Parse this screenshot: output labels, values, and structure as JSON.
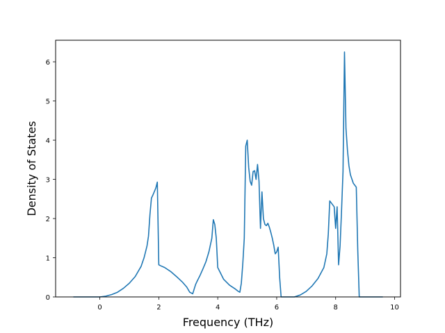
{
  "chart_data": {
    "type": "line",
    "title": "",
    "xlabel": "Frequency (THz)",
    "ylabel": "Density of States",
    "xlim": [
      -1.5,
      10.2
    ],
    "ylim": [
      0,
      6.55
    ],
    "xticks": [
      0,
      2,
      4,
      6,
      8,
      10
    ],
    "xtick_labels": [
      "0",
      "2",
      "4",
      "6",
      "8",
      "10"
    ],
    "yticks": [
      0,
      1,
      2,
      3,
      4,
      5,
      6
    ],
    "ytick_labels": [
      "0",
      "1",
      "2",
      "3",
      "4",
      "5",
      "6"
    ],
    "grid": false,
    "series": [
      {
        "color": "#1f77b4",
        "x": [
          -0.9,
          -0.5,
          0.0,
          0.2,
          0.4,
          0.6,
          0.8,
          1.0,
          1.2,
          1.4,
          1.5,
          1.6,
          1.65,
          1.7,
          1.75,
          1.8,
          1.9,
          1.95,
          2.0,
          2.05,
          2.2,
          2.4,
          2.6,
          2.8,
          2.95,
          3.05,
          3.15,
          3.25,
          3.3,
          3.4,
          3.5,
          3.6,
          3.7,
          3.8,
          3.85,
          3.9,
          3.95,
          4.0,
          4.2,
          4.4,
          4.6,
          4.7,
          4.75,
          4.8,
          4.85,
          4.9,
          4.95,
          5.0,
          5.05,
          5.1,
          5.15,
          5.2,
          5.25,
          5.3,
          5.35,
          5.4,
          5.45,
          5.5,
          5.55,
          5.6,
          5.65,
          5.7,
          5.75,
          5.8,
          5.85,
          5.9,
          5.95,
          6.0,
          6.05,
          6.1,
          6.15,
          6.2,
          6.6,
          6.8,
          7.0,
          7.2,
          7.4,
          7.6,
          7.7,
          7.75,
          7.8,
          7.85,
          7.95,
          8.0,
          8.05,
          8.1,
          8.15,
          8.2,
          8.25,
          8.3,
          8.35,
          8.4,
          8.45,
          8.5,
          8.6,
          8.65,
          8.7,
          8.75,
          8.8,
          9.0,
          9.6
        ],
        "y": [
          0.0,
          0.0,
          0.0,
          0.02,
          0.06,
          0.12,
          0.22,
          0.35,
          0.52,
          0.78,
          1.0,
          1.3,
          1.55,
          2.1,
          2.52,
          2.6,
          2.78,
          2.93,
          0.82,
          0.8,
          0.75,
          0.65,
          0.52,
          0.38,
          0.25,
          0.12,
          0.08,
          0.32,
          0.4,
          0.55,
          0.72,
          0.9,
          1.15,
          1.5,
          1.97,
          1.85,
          1.5,
          0.75,
          0.45,
          0.3,
          0.2,
          0.14,
          0.12,
          0.35,
          0.85,
          1.5,
          3.85,
          4.0,
          3.3,
          2.95,
          2.85,
          3.2,
          3.22,
          3.0,
          3.38,
          2.95,
          1.75,
          2.68,
          2.0,
          1.85,
          1.82,
          1.88,
          1.78,
          1.65,
          1.5,
          1.32,
          1.1,
          1.15,
          1.27,
          0.5,
          0.0,
          0.0,
          0.0,
          0.05,
          0.14,
          0.28,
          0.47,
          0.75,
          1.1,
          1.6,
          2.45,
          2.4,
          2.3,
          1.75,
          2.3,
          0.82,
          1.3,
          2.2,
          3.2,
          6.25,
          4.3,
          3.75,
          3.35,
          3.12,
          2.9,
          2.85,
          2.8,
          1.2,
          0.0,
          0.0,
          0.0
        ]
      }
    ]
  }
}
